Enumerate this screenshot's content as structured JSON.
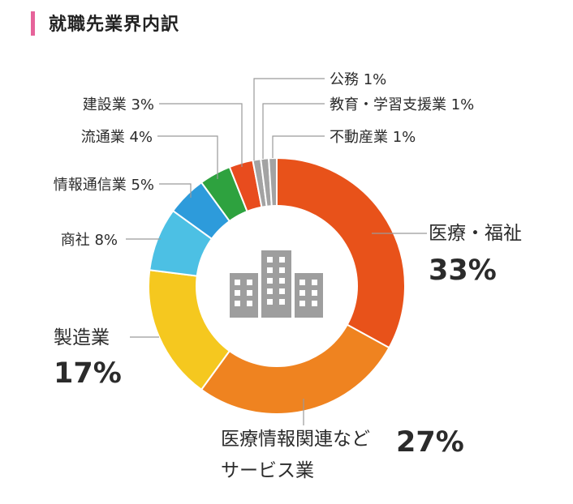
{
  "title": "就職先業界内訳",
  "chart_data": {
    "type": "pie",
    "style": "donut",
    "center_icon": "building-icon",
    "slices": [
      {
        "label": "医療・福祉",
        "value": 33,
        "value_text": "33%",
        "color": "#e8521a"
      },
      {
        "label_lines": [
          "医療情報関連など",
          "サービス業"
        ],
        "value": 27,
        "value_text": "27%",
        "color": "#ef8320"
      },
      {
        "label": "製造業",
        "value": 17,
        "value_text": "17%",
        "color": "#f5c81f"
      },
      {
        "label": "商社",
        "value": 8,
        "value_text": "8%",
        "color": "#4cc0e4"
      },
      {
        "label": "情報通信業",
        "value": 5,
        "value_text": "5%",
        "color": "#2d9bdb"
      },
      {
        "label": "流通業",
        "value": 4,
        "value_text": "4%",
        "color": "#2ea23f"
      },
      {
        "label": "建設業",
        "value": 3,
        "value_text": "3%",
        "color": "#e84c1e"
      },
      {
        "label": "公務",
        "value": 1,
        "value_text": "1%",
        "color": "#a3a3a3"
      },
      {
        "label": "教育・学習支援業",
        "value": 1,
        "value_text": "1%",
        "color": "#a3a3a3"
      },
      {
        "label": "不動産業",
        "value": 1,
        "value_text": "1%",
        "color": "#a3a3a3"
      }
    ]
  }
}
